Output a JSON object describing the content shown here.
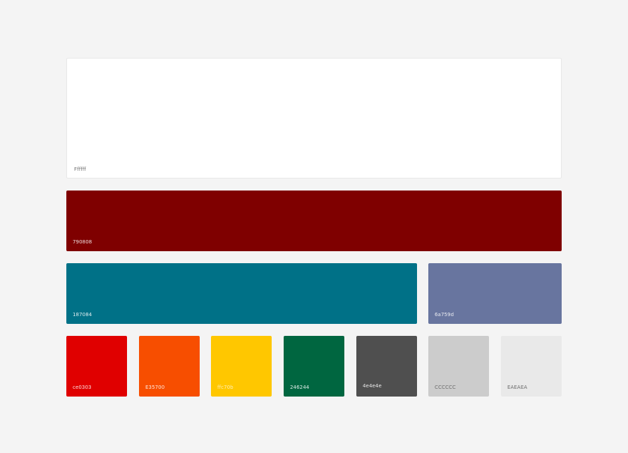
{
  "swatches": [
    {
      "id": "ffffff",
      "label": "Ffffff",
      "color": "#ffffff"
    },
    {
      "id": "790808",
      "label": "790808",
      "color": "#7f0000"
    },
    {
      "id": "187084",
      "label": "187084",
      "color": "#007187"
    },
    {
      "id": "6a759d",
      "label": "6a759d",
      "color": "#68759f"
    },
    {
      "id": "ce0303",
      "label": "ce0303",
      "color": "#e00000"
    },
    {
      "id": "e35700",
      "label": "E35700",
      "color": "#f74e00"
    },
    {
      "id": "ffc70b",
      "label": "ffc70b",
      "color": "#ffc700"
    },
    {
      "id": "246244",
      "label": "246244",
      "color": "#006640"
    },
    {
      "id": "4e4e4e",
      "label": "4e4e4e",
      "color": "#4f4f4f"
    },
    {
      "id": "cccccc",
      "label": "CCCCCC",
      "color": "#cccccc"
    },
    {
      "id": "eaeaea",
      "label": "EAEAEA",
      "color": "#e9e9e9"
    }
  ]
}
